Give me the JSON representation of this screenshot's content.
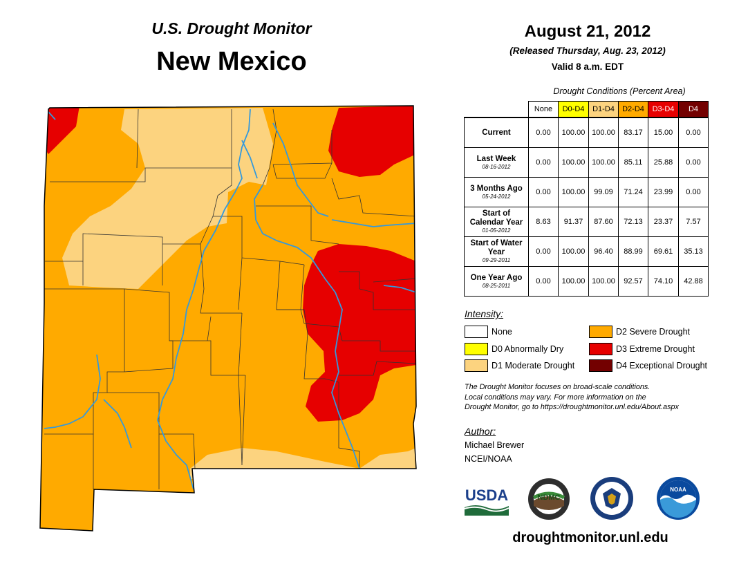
{
  "header": {
    "subtitle": "U.S. Drought Monitor",
    "title": "New Mexico"
  },
  "release": {
    "date": "August 21, 2012",
    "released": "(Released Thursday, Aug. 23, 2012)",
    "valid": "Valid 8 a.m. EDT"
  },
  "table": {
    "caption": "Drought Conditions (Percent Area)",
    "columns": [
      "None",
      "D0-D4",
      "D1-D4",
      "D2-D4",
      "D3-D4",
      "D4"
    ],
    "column_colors": [
      "#ffffff",
      "#ffff00",
      "#fcd37f",
      "#ffaa00",
      "#e60000",
      "#730000"
    ],
    "rows": [
      {
        "label": "Current",
        "sub": "",
        "values": [
          "0.00",
          "100.00",
          "100.00",
          "83.17",
          "15.00",
          "0.00"
        ]
      },
      {
        "label": "Last Week",
        "sub": "08-16-2012",
        "values": [
          "0.00",
          "100.00",
          "100.00",
          "85.11",
          "25.88",
          "0.00"
        ]
      },
      {
        "label": "3 Months Ago",
        "sub": "05-24-2012",
        "values": [
          "0.00",
          "100.00",
          "99.09",
          "71.24",
          "23.99",
          "0.00"
        ]
      },
      {
        "label": "Start of Calendar Year",
        "sub": "01-05-2012",
        "values": [
          "8.63",
          "91.37",
          "87.60",
          "72.13",
          "23.37",
          "7.57"
        ]
      },
      {
        "label": "Start of Water Year",
        "sub": "09-29-2011",
        "values": [
          "0.00",
          "100.00",
          "96.40",
          "88.99",
          "69.61",
          "35.13"
        ]
      },
      {
        "label": "One Year Ago",
        "sub": "08-25-2011",
        "values": [
          "0.00",
          "100.00",
          "100.00",
          "92.57",
          "74.10",
          "42.88"
        ]
      }
    ]
  },
  "legend": {
    "label": "Intensity:",
    "items": [
      {
        "label": "None",
        "color": "#ffffff"
      },
      {
        "label": "D0 Abnormally Dry",
        "color": "#ffff00"
      },
      {
        "label": "D1 Moderate Drought",
        "color": "#fcd37f"
      },
      {
        "label": "D2 Severe Drought",
        "color": "#ffaa00"
      },
      {
        "label": "D3 Extreme Drought",
        "color": "#e60000"
      },
      {
        "label": "D4 Exceptional Drought",
        "color": "#730000"
      }
    ]
  },
  "note": {
    "line1": "The Drought Monitor focuses on broad-scale conditions.",
    "line2": "Local conditions may vary. For more information on the",
    "line3": "Drought Monitor, go to https://droughtmonitor.unl.edu/About.aspx"
  },
  "author": {
    "label": "Author:",
    "name": "Michael Brewer",
    "org": "NCEI/NOAA"
  },
  "logos": {
    "usda": "USDA",
    "ndmc": "NDMC",
    "noaa": "NOAA"
  },
  "footer": {
    "url": "droughtmonitor.unl.edu"
  },
  "map": {
    "state": "New Mexico",
    "river_color": "#3399dd",
    "border_color": "#000000"
  }
}
